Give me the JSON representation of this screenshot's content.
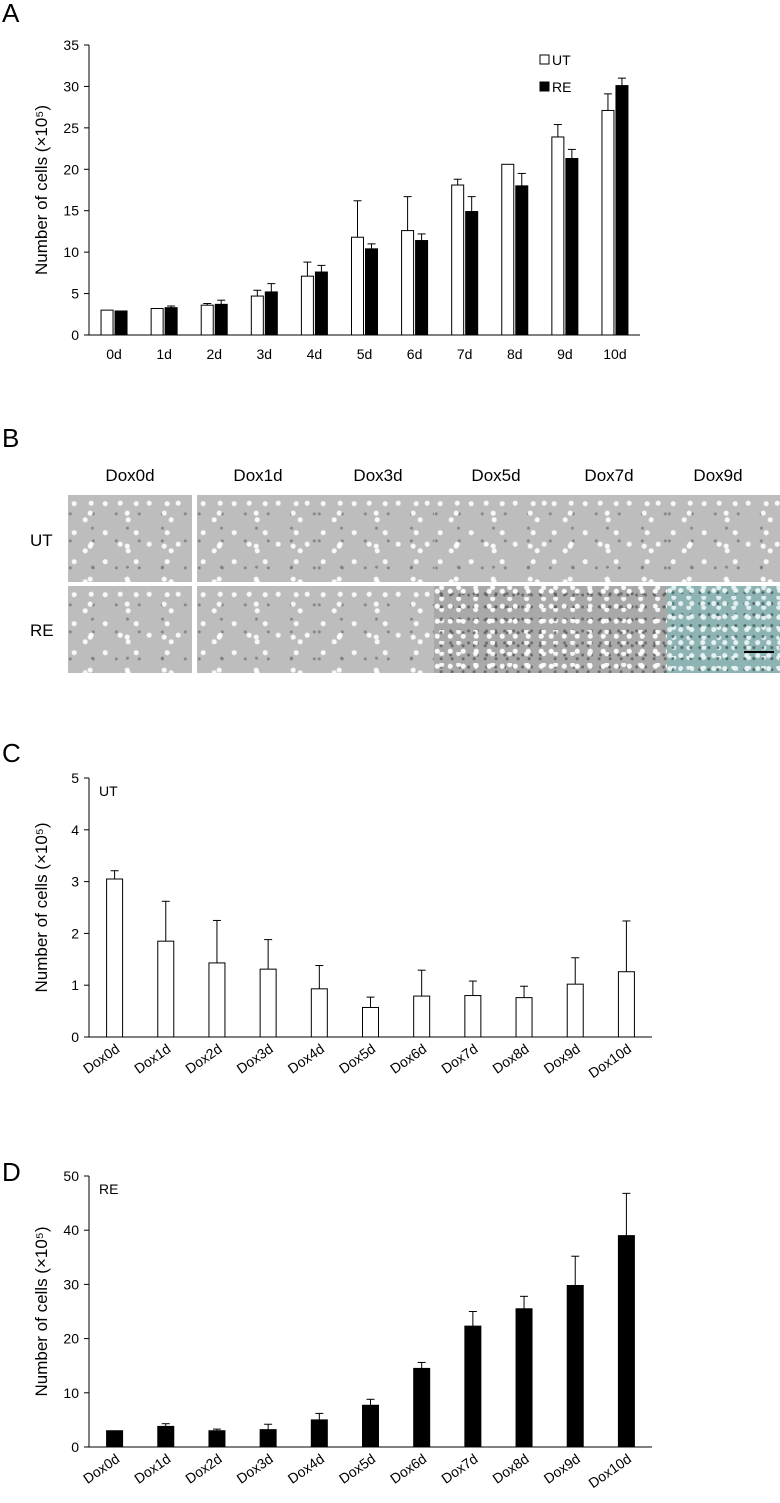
{
  "panels": {
    "A": "A",
    "B": "B",
    "C": "C",
    "D": "D"
  },
  "micrograph": {
    "columns": [
      "Dox0d",
      "Dox1d",
      "Dox3d",
      "Dox5d",
      "Dox7d",
      "Dox9d"
    ],
    "rows": [
      "UT",
      "RE"
    ]
  },
  "chart_data": [
    {
      "type": "bar",
      "categories": [
        "0d",
        "1d",
        "2d",
        "3d",
        "4d",
        "5d",
        "6d",
        "7d",
        "8d",
        "9d",
        "10d"
      ],
      "series": [
        {
          "name": "UT",
          "color": "#ffffff",
          "values": [
            3.0,
            3.2,
            3.6,
            4.7,
            7.1,
            11.8,
            12.6,
            18.1,
            20.6,
            23.9,
            27.1
          ],
          "errors": [
            0,
            0,
            0.2,
            0.7,
            1.7,
            4.4,
            4.1,
            0.7,
            0,
            1.5,
            2.0
          ]
        },
        {
          "name": "RE",
          "color": "#000000",
          "values": [
            2.9,
            3.3,
            3.7,
            5.2,
            7.6,
            10.4,
            11.4,
            14.9,
            18.0,
            21.3,
            30.1
          ],
          "errors": [
            0,
            0.2,
            0.5,
            1.0,
            0.8,
            0.6,
            0.8,
            1.8,
            1.5,
            1.1,
            0.9
          ]
        }
      ],
      "ylabel": "Number of cells (×10⁵)",
      "ylim": [
        0,
        35
      ],
      "yticks": [
        0,
        5,
        10,
        15,
        20,
        25,
        30,
        35
      ],
      "legend": "top-right"
    },
    {
      "type": "bar",
      "annotation": "UT",
      "categories": [
        "Dox0d",
        "Dox1d",
        "Dox2d",
        "Dox3d",
        "Dox4d",
        "Dox5d",
        "Dox6d",
        "Dox7d",
        "Dox8d",
        "Dox9d",
        "Dox10d"
      ],
      "series": [
        {
          "name": "UT",
          "color": "#ffffff",
          "values": [
            3.05,
            1.85,
            1.43,
            1.31,
            0.93,
            0.57,
            0.79,
            0.8,
            0.76,
            1.02,
            1.26
          ],
          "errors": [
            0.16,
            0.77,
            0.82,
            0.57,
            0.45,
            0.2,
            0.5,
            0.28,
            0.22,
            0.51,
            0.98
          ]
        }
      ],
      "ylabel": "Number of cells (×10⁵)",
      "ylim": [
        0,
        5
      ],
      "yticks": [
        0,
        1,
        2,
        3,
        4,
        5
      ]
    },
    {
      "type": "bar",
      "annotation": "RE",
      "categories": [
        "Dox0d",
        "Dox1d",
        "Dox2d",
        "Dox3d",
        "Dox4d",
        "Dox5d",
        "Dox6d",
        "Dox7d",
        "Dox8d",
        "Dox9d",
        "Dox10d"
      ],
      "series": [
        {
          "name": "RE",
          "color": "#000000",
          "values": [
            3.0,
            3.8,
            3.0,
            3.2,
            5.0,
            7.7,
            14.5,
            22.3,
            25.5,
            29.8,
            39.0
          ],
          "errors": [
            0,
            0.5,
            0.3,
            1.0,
            1.2,
            1.1,
            1.1,
            2.7,
            2.3,
            5.4,
            7.8
          ]
        }
      ],
      "ylabel": "Number of cells (×10⁵)",
      "ylim": [
        0,
        50
      ],
      "yticks": [
        0,
        10,
        20,
        30,
        40,
        50
      ]
    }
  ]
}
